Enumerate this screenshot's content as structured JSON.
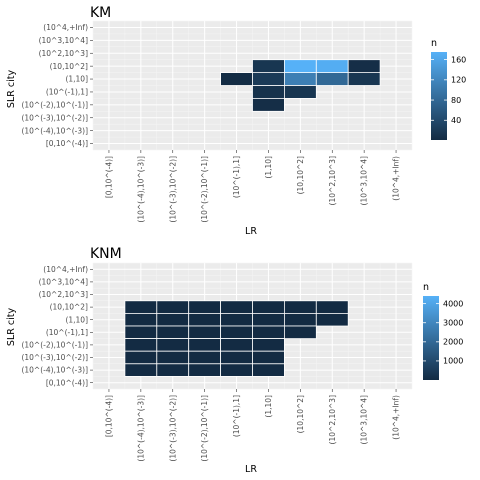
{
  "panels": [
    {
      "title": "KM",
      "xlabel": "LR",
      "ylabel": "SLR city",
      "legend": {
        "title": "n",
        "ticks": [
          40,
          80,
          120,
          160
        ],
        "min": 1,
        "max": 175
      }
    },
    {
      "title": "KNM",
      "xlabel": "LR",
      "ylabel": "SLR city",
      "legend": {
        "title": "n",
        "ticks": [
          1000,
          2000,
          3000,
          4000
        ],
        "min": 1,
        "max": 4400
      }
    }
  ],
  "chart_data": [
    {
      "type": "heatmap",
      "title": "KM",
      "xlabel": "LR",
      "ylabel": "SLR city",
      "x_categories": [
        "[0,10^(-4)]",
        "(10^(-4),10^(-3)]",
        "(10^(-3),10^(-2)]",
        "(10^(-2),10^(-1)]",
        "(10^(-1),1]",
        "(1,10]",
        "(10,10^2]",
        "(10^2,10^3]",
        "(10^3,10^4]",
        "(10^4,+Inf)"
      ],
      "y_categories": [
        "[0,10^(-4)]",
        "(10^(-4),10^(-3)]",
        "(10^(-3),10^(-2)]",
        "(10^(-2),10^(-1)]",
        "(10^(-1),1]",
        "(1,10]",
        "(10,10^2]",
        "(10^2,10^3]",
        "(10^3,10^4]",
        "(10^4,+Inf)"
      ],
      "cells": [
        {
          "x": "(10^(-1),1]",
          "y": "(1,10]",
          "n": 2
        },
        {
          "x": "(1,10]",
          "y": "(1,10]",
          "n": 20
        },
        {
          "x": "(10,10^2]",
          "y": "(1,10]",
          "n": 110
        },
        {
          "x": "(10^2,10^3]",
          "y": "(1,10]",
          "n": 80
        },
        {
          "x": "(10^3,10^4]",
          "y": "(1,10]",
          "n": 15
        },
        {
          "x": "(1,10]",
          "y": "(10,10^2]",
          "n": 15
        },
        {
          "x": "(10,10^2]",
          "y": "(10,10^2]",
          "n": 175
        },
        {
          "x": "(10^2,10^3]",
          "y": "(10,10^2]",
          "n": 170
        },
        {
          "x": "(10^3,10^4]",
          "y": "(10,10^2]",
          "n": 5
        },
        {
          "x": "(1,10]",
          "y": "(10^(-1),1]",
          "n": 10
        },
        {
          "x": "(10,10^2]",
          "y": "(10^(-1),1]",
          "n": 15
        },
        {
          "x": "(1,10]",
          "y": "(10^(-2),10^(-1)]",
          "n": 5
        }
      ],
      "color_scale": {
        "low": "#132B43",
        "high": "#56B1F7",
        "legend_ticks": [
          40,
          80,
          120,
          160
        ]
      }
    },
    {
      "type": "heatmap",
      "title": "KNM",
      "xlabel": "LR",
      "ylabel": "SLR city",
      "x_categories": [
        "[0,10^(-4)]",
        "(10^(-4),10^(-3)]",
        "(10^(-3),10^(-2)]",
        "(10^(-2),10^(-1)]",
        "(10^(-1),1]",
        "(1,10]",
        "(10,10^2]",
        "(10^2,10^3]",
        "(10^3,10^4]",
        "(10^4,+Inf)"
      ],
      "y_categories": [
        "[0,10^(-4)]",
        "(10^(-4),10^(-3)]",
        "(10^(-3),10^(-2)]",
        "(10^(-2),10^(-1)]",
        "(10^(-1),1]",
        "(1,10]",
        "(10,10^2]",
        "(10^2,10^3]",
        "(10^3,10^4]",
        "(10^4,+Inf)"
      ],
      "cells": [
        {
          "x": "(10^(-4),10^(-3)]",
          "y": "(10,10^2]",
          "n": 5
        },
        {
          "x": "(10^(-3),10^(-2)]",
          "y": "(10,10^2]",
          "n": 5
        },
        {
          "x": "(10^(-2),10^(-1)]",
          "y": "(10,10^2]",
          "n": 5
        },
        {
          "x": "(10^(-1),1]",
          "y": "(10,10^2]",
          "n": 5
        },
        {
          "x": "(1,10]",
          "y": "(10,10^2]",
          "n": 5
        },
        {
          "x": "(10,10^2]",
          "y": "(10,10^2]",
          "n": 5
        },
        {
          "x": "(10^2,10^3]",
          "y": "(10,10^2]",
          "n": 5
        },
        {
          "x": "(10^(-4),10^(-3)]",
          "y": "(1,10]",
          "n": 5
        },
        {
          "x": "(10^(-3),10^(-2)]",
          "y": "(1,10]",
          "n": 5
        },
        {
          "x": "(10^(-2),10^(-1)]",
          "y": "(1,10]",
          "n": 5
        },
        {
          "x": "(10^(-1),1]",
          "y": "(1,10]",
          "n": 5
        },
        {
          "x": "(1,10]",
          "y": "(1,10]",
          "n": 5
        },
        {
          "x": "(10,10^2]",
          "y": "(1,10]",
          "n": 5
        },
        {
          "x": "(10^2,10^3]",
          "y": "(1,10]",
          "n": 5
        },
        {
          "x": "(10^(-4),10^(-3)]",
          "y": "(10^(-1),1]",
          "n": 5
        },
        {
          "x": "(10^(-3),10^(-2)]",
          "y": "(10^(-1),1]",
          "n": 5
        },
        {
          "x": "(10^(-2),10^(-1)]",
          "y": "(10^(-1),1]",
          "n": 5
        },
        {
          "x": "(10^(-1),1]",
          "y": "(10^(-1),1]",
          "n": 5
        },
        {
          "x": "(1,10]",
          "y": "(10^(-1),1]",
          "n": 5
        },
        {
          "x": "(10,10^2]",
          "y": "(10^(-1),1]",
          "n": 5
        },
        {
          "x": "(10^(-4),10^(-3)]",
          "y": "(10^(-2),10^(-1)]",
          "n": 5
        },
        {
          "x": "(10^(-3),10^(-2)]",
          "y": "(10^(-2),10^(-1)]",
          "n": 5
        },
        {
          "x": "(10^(-2),10^(-1)]",
          "y": "(10^(-2),10^(-1)]",
          "n": 5
        },
        {
          "x": "(10^(-1),1]",
          "y": "(10^(-2),10^(-1)]",
          "n": 5
        },
        {
          "x": "(1,10]",
          "y": "(10^(-2),10^(-1)]",
          "n": 5
        },
        {
          "x": "(10^(-4),10^(-3)]",
          "y": "(10^(-3),10^(-2)]",
          "n": 5
        },
        {
          "x": "(10^(-3),10^(-2)]",
          "y": "(10^(-3),10^(-2)]",
          "n": 5
        },
        {
          "x": "(10^(-2),10^(-1)]",
          "y": "(10^(-3),10^(-2)]",
          "n": 5
        },
        {
          "x": "(10^(-1),1]",
          "y": "(10^(-3),10^(-2)]",
          "n": 5
        },
        {
          "x": "(1,10]",
          "y": "(10^(-3),10^(-2)]",
          "n": 5
        },
        {
          "x": "(10^(-4),10^(-3)]",
          "y": "(10^(-4),10^(-3)]",
          "n": 5
        },
        {
          "x": "(10^(-3),10^(-2)]",
          "y": "(10^(-4),10^(-3)]",
          "n": 5
        },
        {
          "x": "(10^(-2),10^(-1)]",
          "y": "(10^(-4),10^(-3)]",
          "n": 5
        },
        {
          "x": "(10^(-1),1]",
          "y": "(10^(-4),10^(-3)]",
          "n": 5
        },
        {
          "x": "(1,10]",
          "y": "(10^(-4),10^(-3)]",
          "n": 5
        }
      ],
      "color_scale": {
        "low": "#132B43",
        "high": "#56B1F7",
        "legend_ticks": [
          1000,
          2000,
          3000,
          4000
        ]
      }
    }
  ]
}
